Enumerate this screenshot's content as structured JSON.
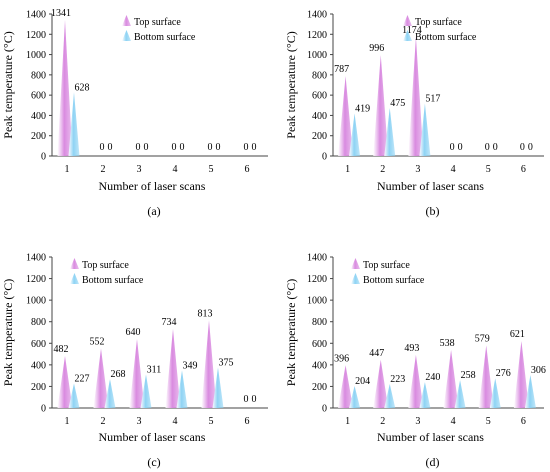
{
  "chart_data": [
    {
      "type": "bar",
      "caption": "(a)",
      "xlabel": "Number of laser scans",
      "ylabel": "Peak temperature (°C)",
      "ylim": [
        0,
        1400
      ],
      "yticks": [
        0,
        200,
        400,
        600,
        800,
        1000,
        1200,
        1400
      ],
      "categories": [
        "1",
        "2",
        "3",
        "4",
        "5",
        "6"
      ],
      "legend_position": "top-right",
      "series": [
        {
          "name": "Top surface",
          "color": "#d98be0",
          "values": [
            1341,
            0,
            0,
            0,
            0,
            0
          ]
        },
        {
          "name": "Bottom surface",
          "color": "#8ed3f4",
          "values": [
            628,
            0,
            0,
            0,
            0,
            0
          ]
        }
      ]
    },
    {
      "type": "bar",
      "caption": "(b)",
      "xlabel": "Number of laser scans",
      "ylabel": "Peak temperature (°C)",
      "ylim": [
        0,
        1400
      ],
      "yticks": [
        0,
        200,
        400,
        600,
        800,
        1000,
        1200,
        1400
      ],
      "categories": [
        "1",
        "2",
        "3",
        "4",
        "5",
        "6"
      ],
      "legend_position": "top-right",
      "series": [
        {
          "name": "Top surface",
          "color": "#d98be0",
          "values": [
            787,
            996,
            1174,
            0,
            0,
            0
          ]
        },
        {
          "name": "Bottom surface",
          "color": "#8ed3f4",
          "values": [
            419,
            475,
            517,
            0,
            0,
            0
          ]
        }
      ]
    },
    {
      "type": "bar",
      "caption": "(c)",
      "xlabel": "Number of laser scans",
      "ylabel": "Peak temperature (°C)",
      "ylim": [
        0,
        1400
      ],
      "yticks": [
        0,
        200,
        400,
        600,
        800,
        1000,
        1200,
        1400
      ],
      "categories": [
        "1",
        "2",
        "3",
        "4",
        "5",
        "6"
      ],
      "legend_position": "top-left",
      "series": [
        {
          "name": "Top surface",
          "color": "#d98be0",
          "values": [
            482,
            552,
            640,
            734,
            813,
            0
          ]
        },
        {
          "name": "Bottom surface",
          "color": "#8ed3f4",
          "values": [
            227,
            268,
            311,
            349,
            375,
            0
          ]
        }
      ]
    },
    {
      "type": "bar",
      "caption": "(d)",
      "xlabel": "Number of laser scans",
      "ylabel": "Peak temperature (°C)",
      "ylim": [
        0,
        1400
      ],
      "yticks": [
        0,
        200,
        400,
        600,
        800,
        1000,
        1200,
        1400
      ],
      "categories": [
        "1",
        "2",
        "3",
        "4",
        "5",
        "6"
      ],
      "legend_position": "top-left",
      "series": [
        {
          "name": "Top surface",
          "color": "#d98be0",
          "values": [
            396,
            447,
            493,
            538,
            579,
            621
          ]
        },
        {
          "name": "Bottom surface",
          "color": "#8ed3f4",
          "values": [
            204,
            223,
            240,
            258,
            276,
            306
          ]
        }
      ]
    }
  ]
}
